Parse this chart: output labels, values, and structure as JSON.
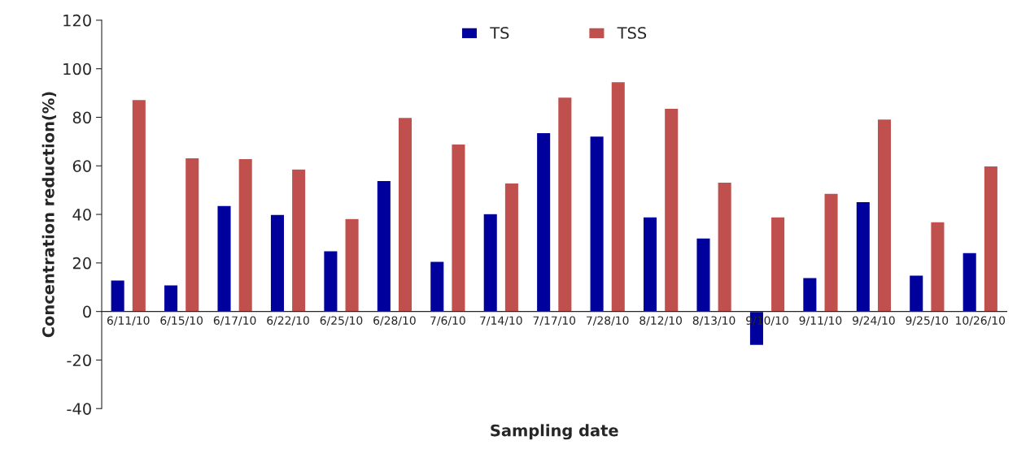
{
  "chart_data": {
    "type": "bar",
    "xlabel": "Sampling date",
    "ylabel": "Concentration reduction(%)",
    "categories": [
      "6/11/10",
      "6/15/10",
      "6/17/10",
      "6/22/10",
      "6/25/10",
      "6/28/10",
      "7/6/10",
      "7/14/10",
      "7/17/10",
      "7/28/10",
      "8/12/10",
      "8/13/10",
      "9/10/10",
      "9/11/10",
      "9/24/10",
      "9/25/10",
      "10/26/10"
    ],
    "series": [
      {
        "name": "TS",
        "color": "#00009c",
        "values": [
          13,
          11,
          43.7,
          40,
          25,
          54,
          20.7,
          40.3,
          73.7,
          72.3,
          39,
          30.3,
          -14,
          14,
          45.3,
          15,
          24.3
        ]
      },
      {
        "name": "TSS",
        "color": "#c0504d",
        "values": [
          87.3,
          63.3,
          63,
          58.7,
          38.3,
          80,
          69,
          53,
          88.3,
          94.7,
          83.7,
          53.3,
          39,
          48.7,
          79.3,
          37,
          60
        ]
      }
    ],
    "ylim": [
      -40,
      120
    ],
    "yticks": [
      -40,
      -20,
      0,
      20,
      40,
      60,
      80,
      100,
      120
    ],
    "grid": false,
    "legend": "top"
  }
}
